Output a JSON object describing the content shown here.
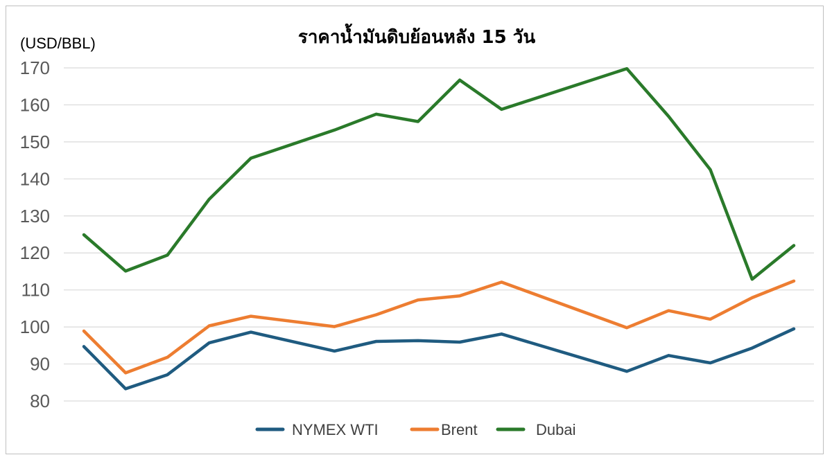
{
  "colors": {
    "wti": "#1f5b80",
    "brent": "#ed7d31",
    "dubai": "#2a7a2a",
    "grid": "#d9d9d9"
  },
  "chart_data": {
    "type": "line",
    "title": "ราคาน้ำมันดิบย้อนหลัง 15 วัน",
    "ylabel": "(USD/BBL)",
    "ylim": [
      80,
      170
    ],
    "yticks": [
      "80",
      "90",
      "100",
      "110",
      "120",
      "130",
      "140",
      "150",
      "160",
      "170"
    ],
    "grid": true,
    "legend_position": "bottom",
    "series": [
      {
        "name": "NYMEX WTI",
        "color": "#1f5b80",
        "values": [
          94.7,
          83.3,
          87.1,
          95.7,
          98.6,
          null,
          93.5,
          96.1,
          96.3,
          95.9,
          98.1,
          null,
          null,
          88.0,
          92.3,
          90.3,
          94.3,
          99.5
        ]
      },
      {
        "name": "Brent",
        "color": "#ed7d31",
        "values": [
          98.9,
          87.6,
          91.8,
          100.3,
          102.9,
          null,
          100.1,
          103.3,
          107.3,
          108.4,
          112.1,
          null,
          null,
          99.8,
          104.4,
          102.1,
          107.9,
          112.4
        ]
      },
      {
        "name": "Dubai",
        "color": "#2a7a2a",
        "values": [
          124.9,
          115.1,
          119.4,
          134.5,
          145.6,
          null,
          153.2,
          157.5,
          155.5,
          166.7,
          158.8,
          null,
          null,
          169.8,
          156.9,
          142.5,
          112.9,
          122.0
        ]
      }
    ]
  }
}
